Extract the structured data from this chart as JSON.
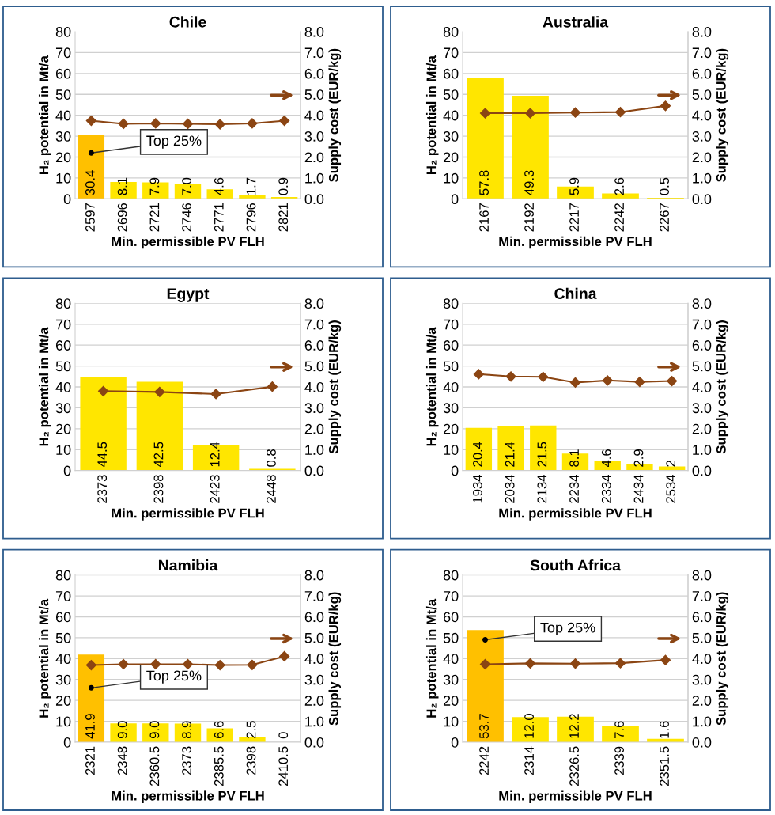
{
  "chart_data": [
    {
      "type": "bar",
      "title": "Chile",
      "xlabel": "Min. permissible PV FLH",
      "ylabel": "H₂ potential in Mt/a",
      "y2label": "Supply cost (EUR/kg)",
      "categories": [
        "2597",
        "2696",
        "2721",
        "2746",
        "2771",
        "2796",
        "2821"
      ],
      "series": [
        {
          "colors": [
            "#ffc000",
            "#ffe600",
            "#ffe600",
            "#ffe600",
            "#ffe600",
            "#ffe600",
            "#ffe600"
          ],
          "values": [
            30.4,
            8.1,
            7.9,
            7.0,
            4.6,
            1.7,
            0.9
          ],
          "value_labels": [
            "30.4",
            "8.1",
            "7.9",
            "7.0",
            "4.6",
            "1.7",
            "0.9"
          ]
        },
        {
          "type": "line",
          "axis": "y2",
          "color": "#8b4513",
          "marker": "diamond",
          "values": [
            3.74,
            3.59,
            3.61,
            3.59,
            3.57,
            3.61,
            3.74
          ]
        }
      ],
      "ylim": [
        0,
        80
      ],
      "yticks": [
        0,
        10,
        20,
        30,
        40,
        50,
        60,
        70,
        80
      ],
      "y2lim": [
        0,
        8
      ],
      "y2ticks": [
        {
          "value": 0,
          "label": "0.0"
        },
        {
          "value": 1,
          "label": "1.0"
        },
        {
          "value": 2,
          "label": "2.0"
        },
        {
          "value": 3,
          "label": "3.0"
        },
        {
          "value": 4,
          "label": "4.0"
        },
        {
          "value": 5,
          "label": "5.0"
        },
        {
          "value": 6,
          "label": "6.0"
        },
        {
          "value": 7,
          "label": "7.0"
        },
        {
          "value": 8,
          "label": "8.0"
        }
      ],
      "grid": "y",
      "annotations": [
        {
          "text": "Top 25%",
          "x": "2597",
          "y": 22
        }
      ]
    },
    {
      "type": "bar",
      "title": "Australia",
      "xlabel": "Min. permissible PV FLH",
      "ylabel": "H₂ potential in Mt/a",
      "y2label": "Supply cost (EUR/kg)",
      "categories": [
        "2167",
        "2192",
        "2217",
        "2242",
        "2267"
      ],
      "series": [
        {
          "colors": [
            "#ffe600",
            "#ffe600",
            "#ffe600",
            "#ffe600",
            "#ffe600"
          ],
          "values": [
            57.8,
            49.3,
            5.9,
            2.6,
            0.5
          ],
          "value_labels": [
            "57.8",
            "49.3",
            "5.9",
            "2.6",
            "0.5"
          ]
        },
        {
          "type": "line",
          "axis": "y2",
          "color": "#8b4513",
          "marker": "diamond",
          "values": [
            4.1,
            4.1,
            4.13,
            4.15,
            4.45
          ]
        }
      ],
      "ylim": [
        0,
        80
      ],
      "yticks": [
        0,
        10,
        20,
        30,
        40,
        50,
        60,
        70,
        80
      ],
      "y2lim": [
        0,
        8
      ],
      "y2ticks": [
        {
          "value": 0,
          "label": "0.0"
        },
        {
          "value": 1,
          "label": "1.0"
        },
        {
          "value": 2,
          "label": "2.0"
        },
        {
          "value": 3,
          "label": "3.0"
        },
        {
          "value": 4,
          "label": "4.0"
        },
        {
          "value": 5,
          "label": "5.0"
        },
        {
          "value": 6,
          "label": "6.0"
        },
        {
          "value": 7,
          "label": "7.0"
        },
        {
          "value": 8,
          "label": "8.0"
        }
      ],
      "grid": "y"
    },
    {
      "type": "bar",
      "title": "Egypt",
      "xlabel": "Min. permissible PV FLH",
      "ylabel": "H₂ potential in Mt/a",
      "y2label": "Supply cost (EUR/kg)",
      "categories": [
        "2373",
        "2398",
        "2423",
        "2448"
      ],
      "series": [
        {
          "colors": [
            "#ffe600",
            "#ffe600",
            "#ffe600",
            "#ffe600"
          ],
          "values": [
            44.5,
            42.5,
            12.4,
            0.8
          ],
          "value_labels": [
            "44.5",
            "42.5",
            "12.4",
            "0.8"
          ]
        },
        {
          "type": "line",
          "axis": "y2",
          "color": "#8b4513",
          "marker": "diamond",
          "values": [
            3.8,
            3.76,
            3.66,
            4.01
          ]
        }
      ],
      "ylim": [
        0,
        80
      ],
      "yticks": [
        0,
        10,
        20,
        30,
        40,
        50,
        60,
        70,
        80
      ],
      "y2lim": [
        0,
        8
      ],
      "y2ticks": [
        {
          "value": 0,
          "label": "0.0"
        },
        {
          "value": 1,
          "label": "1.0"
        },
        {
          "value": 2,
          "label": "2.0"
        },
        {
          "value": 3,
          "label": "3.0"
        },
        {
          "value": 4,
          "label": "4.0"
        },
        {
          "value": 5,
          "label": "5.0"
        },
        {
          "value": 6,
          "label": "6.0"
        },
        {
          "value": 7,
          "label": "7.0"
        },
        {
          "value": 8,
          "label": "8.0"
        }
      ],
      "grid": "y"
    },
    {
      "type": "bar",
      "title": "China",
      "xlabel": "Min. permissible PV FLH",
      "ylabel": "H₂ potential in Mt/a",
      "y2label": "Supply cost (EUR/kg)",
      "categories": [
        "1934",
        "2034",
        "2134",
        "2234",
        "2334",
        "2434",
        "2534"
      ],
      "series": [
        {
          "colors": [
            "#ffe600",
            "#ffe600",
            "#ffe600",
            "#ffe600",
            "#ffe600",
            "#ffe600",
            "#ffe600"
          ],
          "values": [
            20.4,
            21.4,
            21.5,
            8.1,
            4.6,
            2.9,
            2
          ],
          "value_labels": [
            "20.4",
            "21.4",
            "21.5",
            "8.1",
            "4.6",
            "2.9",
            "2"
          ]
        },
        {
          "type": "line",
          "axis": "y2",
          "color": "#8b4513",
          "marker": "diamond",
          "values": [
            4.61,
            4.5,
            4.48,
            4.21,
            4.31,
            4.24,
            4.28
          ]
        }
      ],
      "ylim": [
        0,
        80
      ],
      "yticks": [
        0,
        10,
        20,
        30,
        40,
        50,
        60,
        70,
        80
      ],
      "y2lim": [
        0,
        8
      ],
      "y2ticks": [
        {
          "value": 0,
          "label": "0.0"
        },
        {
          "value": 1,
          "label": "1.0"
        },
        {
          "value": 2,
          "label": "2.0"
        },
        {
          "value": 3,
          "label": "3.0"
        },
        {
          "value": 4,
          "label": "4.0"
        },
        {
          "value": 5,
          "label": "5.0"
        },
        {
          "value": 6,
          "label": "6.0"
        },
        {
          "value": 7,
          "label": "7.0"
        },
        {
          "value": 8,
          "label": "8.0"
        }
      ],
      "grid": "y"
    },
    {
      "type": "bar",
      "title": "Namibia",
      "xlabel": "Min. permissible PV FLH",
      "ylabel": "H₂ potential in Mt/a",
      "y2label": "Supply cost (EUR/kg)",
      "categories": [
        "2321",
        "2348",
        "2360.5",
        "2373",
        "2385.5",
        "2398",
        "2410.5"
      ],
      "series": [
        {
          "colors": [
            "#ffc000",
            "#ffe600",
            "#ffe600",
            "#ffe600",
            "#ffe600",
            "#ffe600",
            "#ffe600"
          ],
          "values": [
            41.9,
            9.0,
            9.0,
            8.9,
            6.6,
            2.5,
            0
          ],
          "value_labels": [
            "41.9",
            "9.0",
            "9.0",
            "8.9",
            "6.6",
            "2.5",
            "0"
          ]
        },
        {
          "type": "line",
          "axis": "y2",
          "color": "#8b4513",
          "marker": "diamond",
          "values": [
            3.69,
            3.73,
            3.73,
            3.73,
            3.69,
            3.7,
            4.11
          ]
        }
      ],
      "ylim": [
        0,
        80
      ],
      "yticks": [
        0,
        10,
        20,
        30,
        40,
        50,
        60,
        70,
        80
      ],
      "y2lim": [
        0,
        8
      ],
      "y2ticks": [
        {
          "value": 0,
          "label": "0.0"
        },
        {
          "value": 1,
          "label": "1.0"
        },
        {
          "value": 2,
          "label": "2.0"
        },
        {
          "value": 3,
          "label": "3.0"
        },
        {
          "value": 4,
          "label": "4.0"
        },
        {
          "value": 5,
          "label": "5.0"
        },
        {
          "value": 6,
          "label": "6.0"
        },
        {
          "value": 7,
          "label": "7.0"
        },
        {
          "value": 8,
          "label": "8.0"
        }
      ],
      "grid": "y",
      "annotations": [
        {
          "text": "Top 25%",
          "x": "2321",
          "y": 26
        }
      ]
    },
    {
      "type": "bar",
      "title": "South Africa",
      "xlabel": "Min. permissible PV FLH",
      "ylabel": "H₂ potential in Mt/a",
      "y2label": "Supply cost (EUR/kg)",
      "categories": [
        "2242",
        "2314",
        "2326.5",
        "2339",
        "2351.5"
      ],
      "series": [
        {
          "colors": [
            "#ffc000",
            "#ffe600",
            "#ffe600",
            "#ffe600",
            "#ffe600"
          ],
          "values": [
            53.7,
            12.0,
            12.2,
            7.6,
            1.6
          ],
          "value_labels": [
            "53.7",
            "12.0",
            "12.2",
            "7.6",
            "1.6"
          ]
        },
        {
          "type": "line",
          "axis": "y2",
          "color": "#8b4513",
          "marker": "diamond",
          "values": [
            3.73,
            3.77,
            3.76,
            3.78,
            3.93
          ]
        }
      ],
      "ylim": [
        0,
        80
      ],
      "yticks": [
        0,
        10,
        20,
        30,
        40,
        50,
        60,
        70,
        80
      ],
      "y2lim": [
        0,
        8
      ],
      "y2ticks": [
        {
          "value": 0,
          "label": "0.0"
        },
        {
          "value": 1,
          "label": "1.0"
        },
        {
          "value": 2,
          "label": "2.0"
        },
        {
          "value": 3,
          "label": "3.0"
        },
        {
          "value": 4,
          "label": "4.0"
        },
        {
          "value": 5,
          "label": "5.0"
        },
        {
          "value": 6,
          "label": "6.0"
        },
        {
          "value": 7,
          "label": "7.0"
        },
        {
          "value": 8,
          "label": "8.0"
        }
      ],
      "grid": "y",
      "annotations": [
        {
          "text": "Top 25%",
          "x": "2242",
          "y": 49
        }
      ]
    }
  ]
}
